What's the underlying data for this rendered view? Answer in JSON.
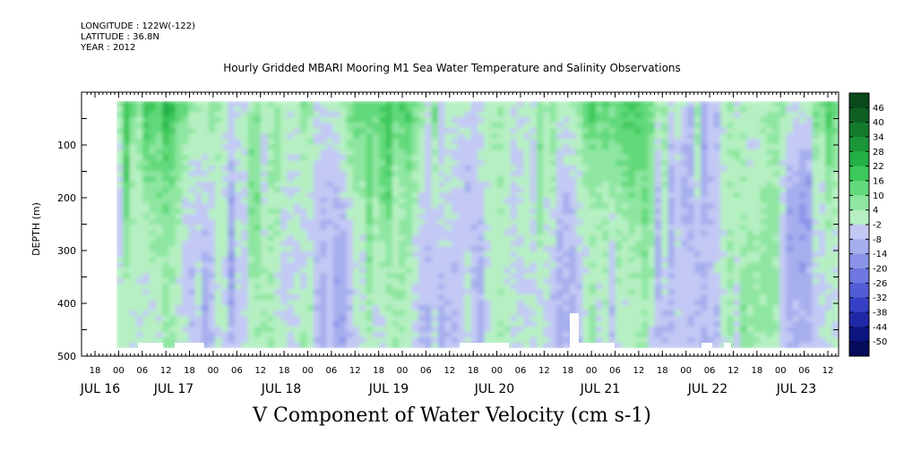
{
  "header": {
    "longitude": "LONGITUDE : 122W(-122)",
    "latitude": "LATITUDE : 36.8N",
    "year": "YEAR : 2012"
  },
  "chart_data": {
    "type": "heatmap",
    "title": "Hourly Gridded MBARI Mooring M1 Sea Water Temperature and Salinity Observations",
    "xlabel": "V Component of Water Velocity (cm s-1)",
    "ylabel": "DEPTH (m)",
    "ylim": [
      500,
      0
    ],
    "y_ticks": [
      100,
      200,
      300,
      400,
      500
    ],
    "x_hour_ticks": [
      "18",
      "00",
      "06",
      "12",
      "18",
      "00",
      "06",
      "12",
      "18",
      "00",
      "06",
      "12",
      "18",
      "00",
      "06",
      "12",
      "18",
      "00",
      "06",
      "12",
      "18",
      "00",
      "06",
      "12",
      "18",
      "00",
      "06",
      "12",
      "18",
      "00",
      "06",
      "12"
    ],
    "x_day_labels": [
      "JUL 16",
      "JUL 17",
      "JUL 18",
      "JUL 19",
      "JUL 20",
      "JUL 21",
      "JUL 22",
      "JUL 23"
    ],
    "colorbar": {
      "levels": [
        46,
        40,
        34,
        28,
        22,
        16,
        10,
        4,
        -2,
        -8,
        -14,
        -20,
        -26,
        -32,
        -38,
        -44,
        -50
      ],
      "colors": [
        "#0a4a1a",
        "#0f5e22",
        "#137a2c",
        "#1a9638",
        "#23b046",
        "#3cc85a",
        "#62d97a",
        "#8ee6a0",
        "#b6f0c2",
        "#c3c9f4",
        "#a6aeee",
        "#8b94e8",
        "#6f78e0",
        "#525cd6",
        "#3640c4",
        "#1f28a6",
        "#0c1480",
        "#050a5a"
      ]
    }
  }
}
